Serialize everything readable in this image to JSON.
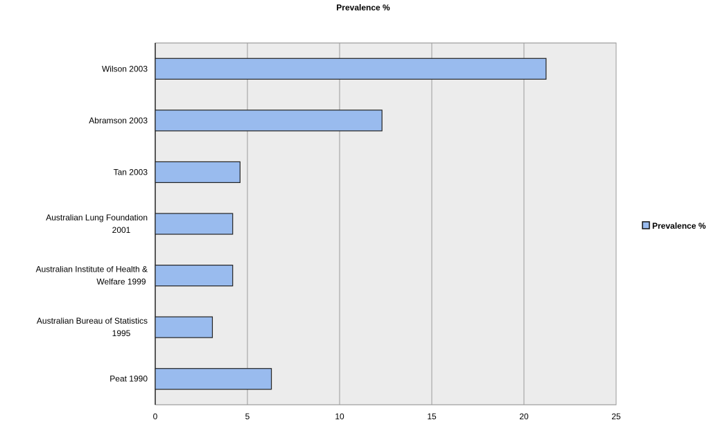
{
  "chart_data": {
    "type": "bar",
    "orientation": "horizontal",
    "title": "Prevalence %",
    "xlabel": "",
    "ylabel": "",
    "categories": [
      "Wilson 2003",
      "Abramson 2003",
      "Tan 2003",
      "Australian Lung Foundation 2001",
      "Australian Institute of Health & Welfare 1999",
      "Australian Bureau of Statistics 1995",
      "Peat 1990"
    ],
    "category_label_lines": [
      [
        "Wilson 2003"
      ],
      [
        "Abramson 2003"
      ],
      [
        "Tan 2003"
      ],
      [
        "Australian Lung Foundation",
        "2001"
      ],
      [
        "Australian Institute of Health &",
        "Welfare 1999"
      ],
      [
        "Australian Bureau of Statistics",
        "1995"
      ],
      [
        "Peat 1990"
      ]
    ],
    "series": [
      {
        "name": "Prevalence %",
        "values": [
          21.2,
          12.3,
          4.6,
          4.2,
          4.2,
          3.1,
          6.3
        ],
        "color": "#99bbee"
      }
    ],
    "xlim": [
      0,
      25
    ],
    "xticks": [
      0,
      5,
      10,
      15,
      20,
      25
    ],
    "grid": true,
    "legend_position": "right",
    "colors": {
      "plot_background": "#ececec",
      "gridline": "#9a9a9a",
      "bar_fill": "#99bbee",
      "bar_stroke": "#222222"
    }
  }
}
